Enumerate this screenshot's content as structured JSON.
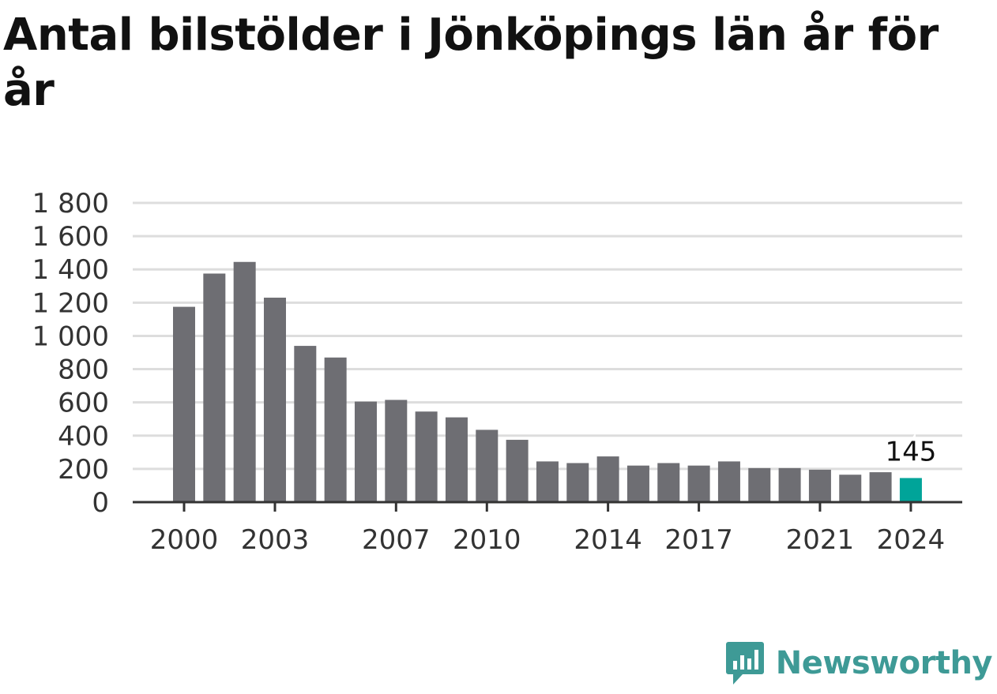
{
  "title": "Antal bilstölder i Jönköpings län år för år",
  "brand": {
    "name": "Newsworthy",
    "icon": "newsworthy-logo-icon",
    "color": "#3e9a96"
  },
  "colors": {
    "bar": "#6e6e73",
    "highlight": "#00a499",
    "grid": "#dddddd",
    "axis": "#333333"
  },
  "chart_data": {
    "type": "bar",
    "title": "Antal bilstölder i Jönköpings län år för år",
    "xlabel": "",
    "ylabel": "",
    "ylim": [
      0,
      1800
    ],
    "y_ticks": [
      0,
      200,
      400,
      600,
      800,
      1000,
      1200,
      1400,
      1600,
      1800
    ],
    "y_tick_labels": [
      "0",
      "200",
      "400",
      "600",
      "800",
      "1 000",
      "1 200",
      "1 400",
      "1 600",
      "1 800"
    ],
    "x_tick_labels": [
      "2000",
      "2003",
      "2007",
      "2010",
      "2014",
      "2017",
      "2021",
      "2024"
    ],
    "categories": [
      "2000",
      "2001",
      "2002",
      "2003",
      "2004",
      "2005",
      "2006",
      "2007",
      "2008",
      "2009",
      "2010",
      "2011",
      "2012",
      "2013",
      "2014",
      "2015",
      "2016",
      "2017",
      "2018",
      "2019",
      "2020",
      "2021",
      "2022",
      "2023",
      "2024"
    ],
    "values": [
      1175,
      1375,
      1445,
      1230,
      940,
      870,
      605,
      615,
      545,
      510,
      435,
      375,
      245,
      235,
      275,
      220,
      235,
      220,
      245,
      205,
      205,
      195,
      165,
      180,
      145
    ],
    "highlight": {
      "category": "2024",
      "label": "145"
    },
    "grid": true,
    "legend": "none"
  }
}
